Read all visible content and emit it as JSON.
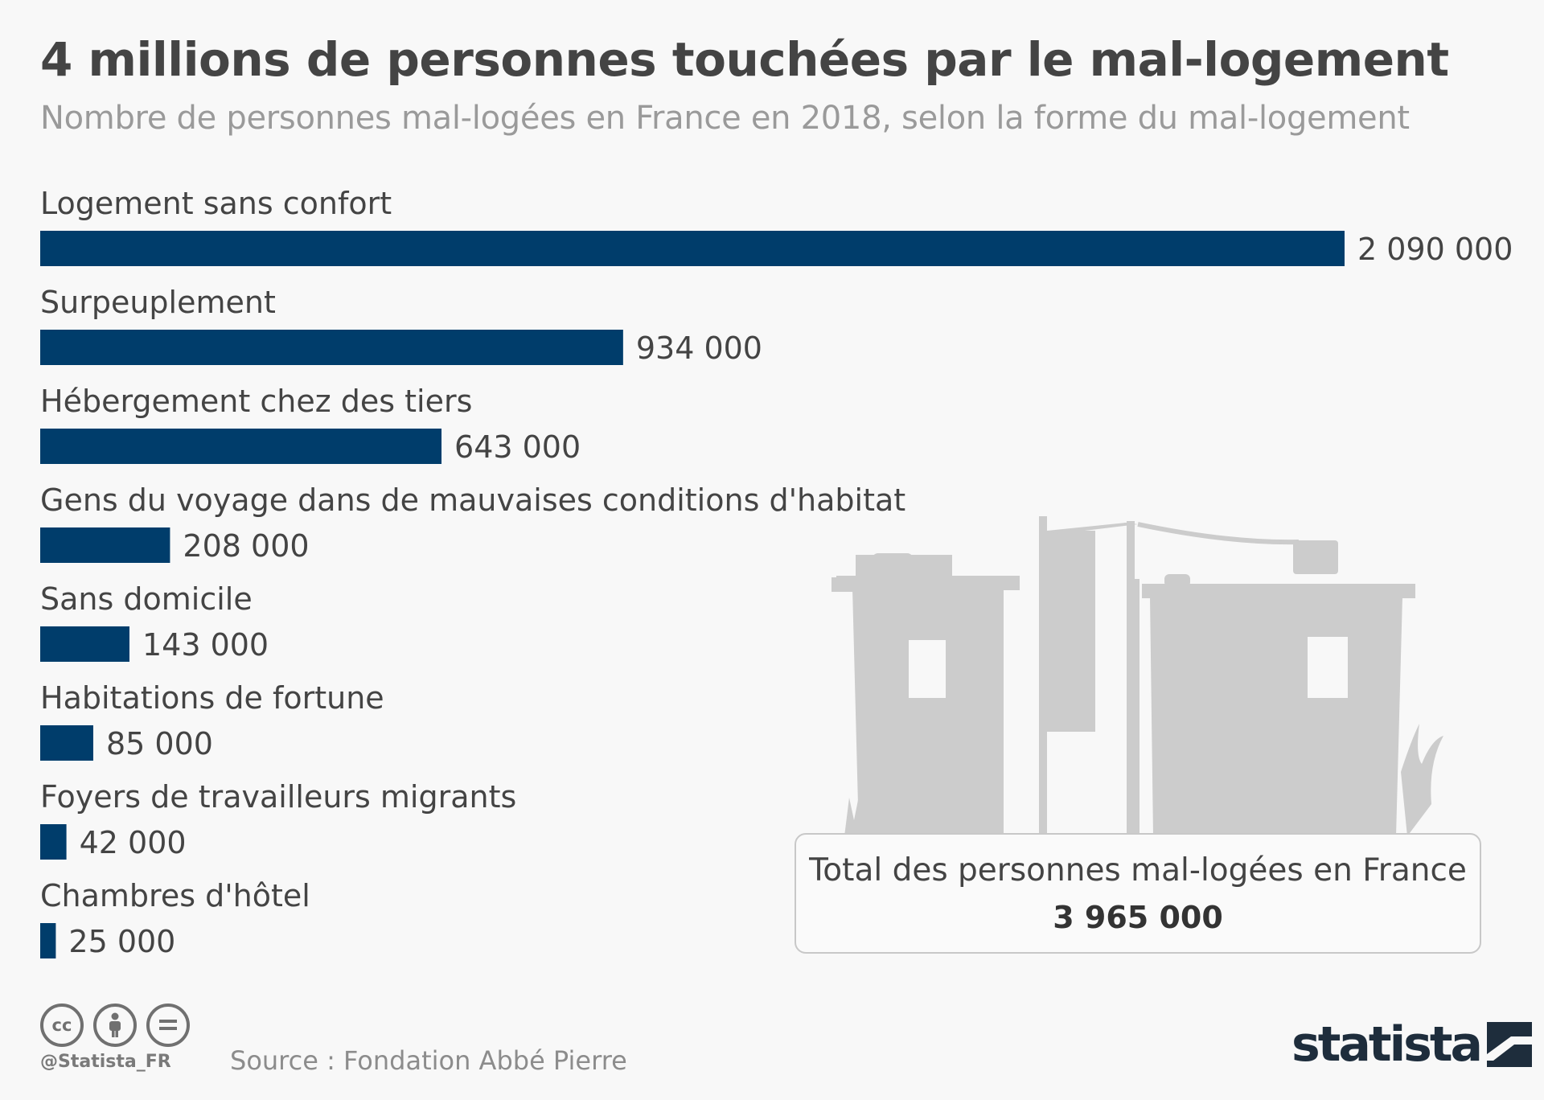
{
  "title": "4 millions de personnes touchées par le mal-logement",
  "subtitle": "Nombre de personnes mal-logées en France en 2018, selon la forme du mal-logement",
  "chart_data": {
    "type": "bar",
    "orientation": "horizontal",
    "categories": [
      "Logement sans confort",
      "Surpeuplement",
      "Hébergement chez des tiers",
      "Gens du voyage dans de mauvaises conditions d'habitat",
      "Sans domicile",
      "Habitations de fortune",
      "Foyers de travailleurs migrants",
      "Chambres d'hôtel"
    ],
    "values": [
      2090000,
      934000,
      643000,
      208000,
      143000,
      85000,
      42000,
      25000
    ],
    "value_labels": [
      "2 090 000",
      "934 000",
      "643 000",
      "208 000",
      "143 000",
      "85 000",
      "42 000",
      "25 000"
    ],
    "xlim": [
      0,
      2090000
    ],
    "grid": false,
    "bar_color": "#003d6b"
  },
  "total": {
    "label": "Total des personnes mal-logées en France",
    "value": "3 965 000"
  },
  "footer": {
    "license_icons": [
      "cc-icon",
      "by-person-icon",
      "nd-equals-icon"
    ],
    "handle": "@Statista_FR",
    "source": "Source : Fondation Abbé Pierre",
    "brand": "statista"
  }
}
